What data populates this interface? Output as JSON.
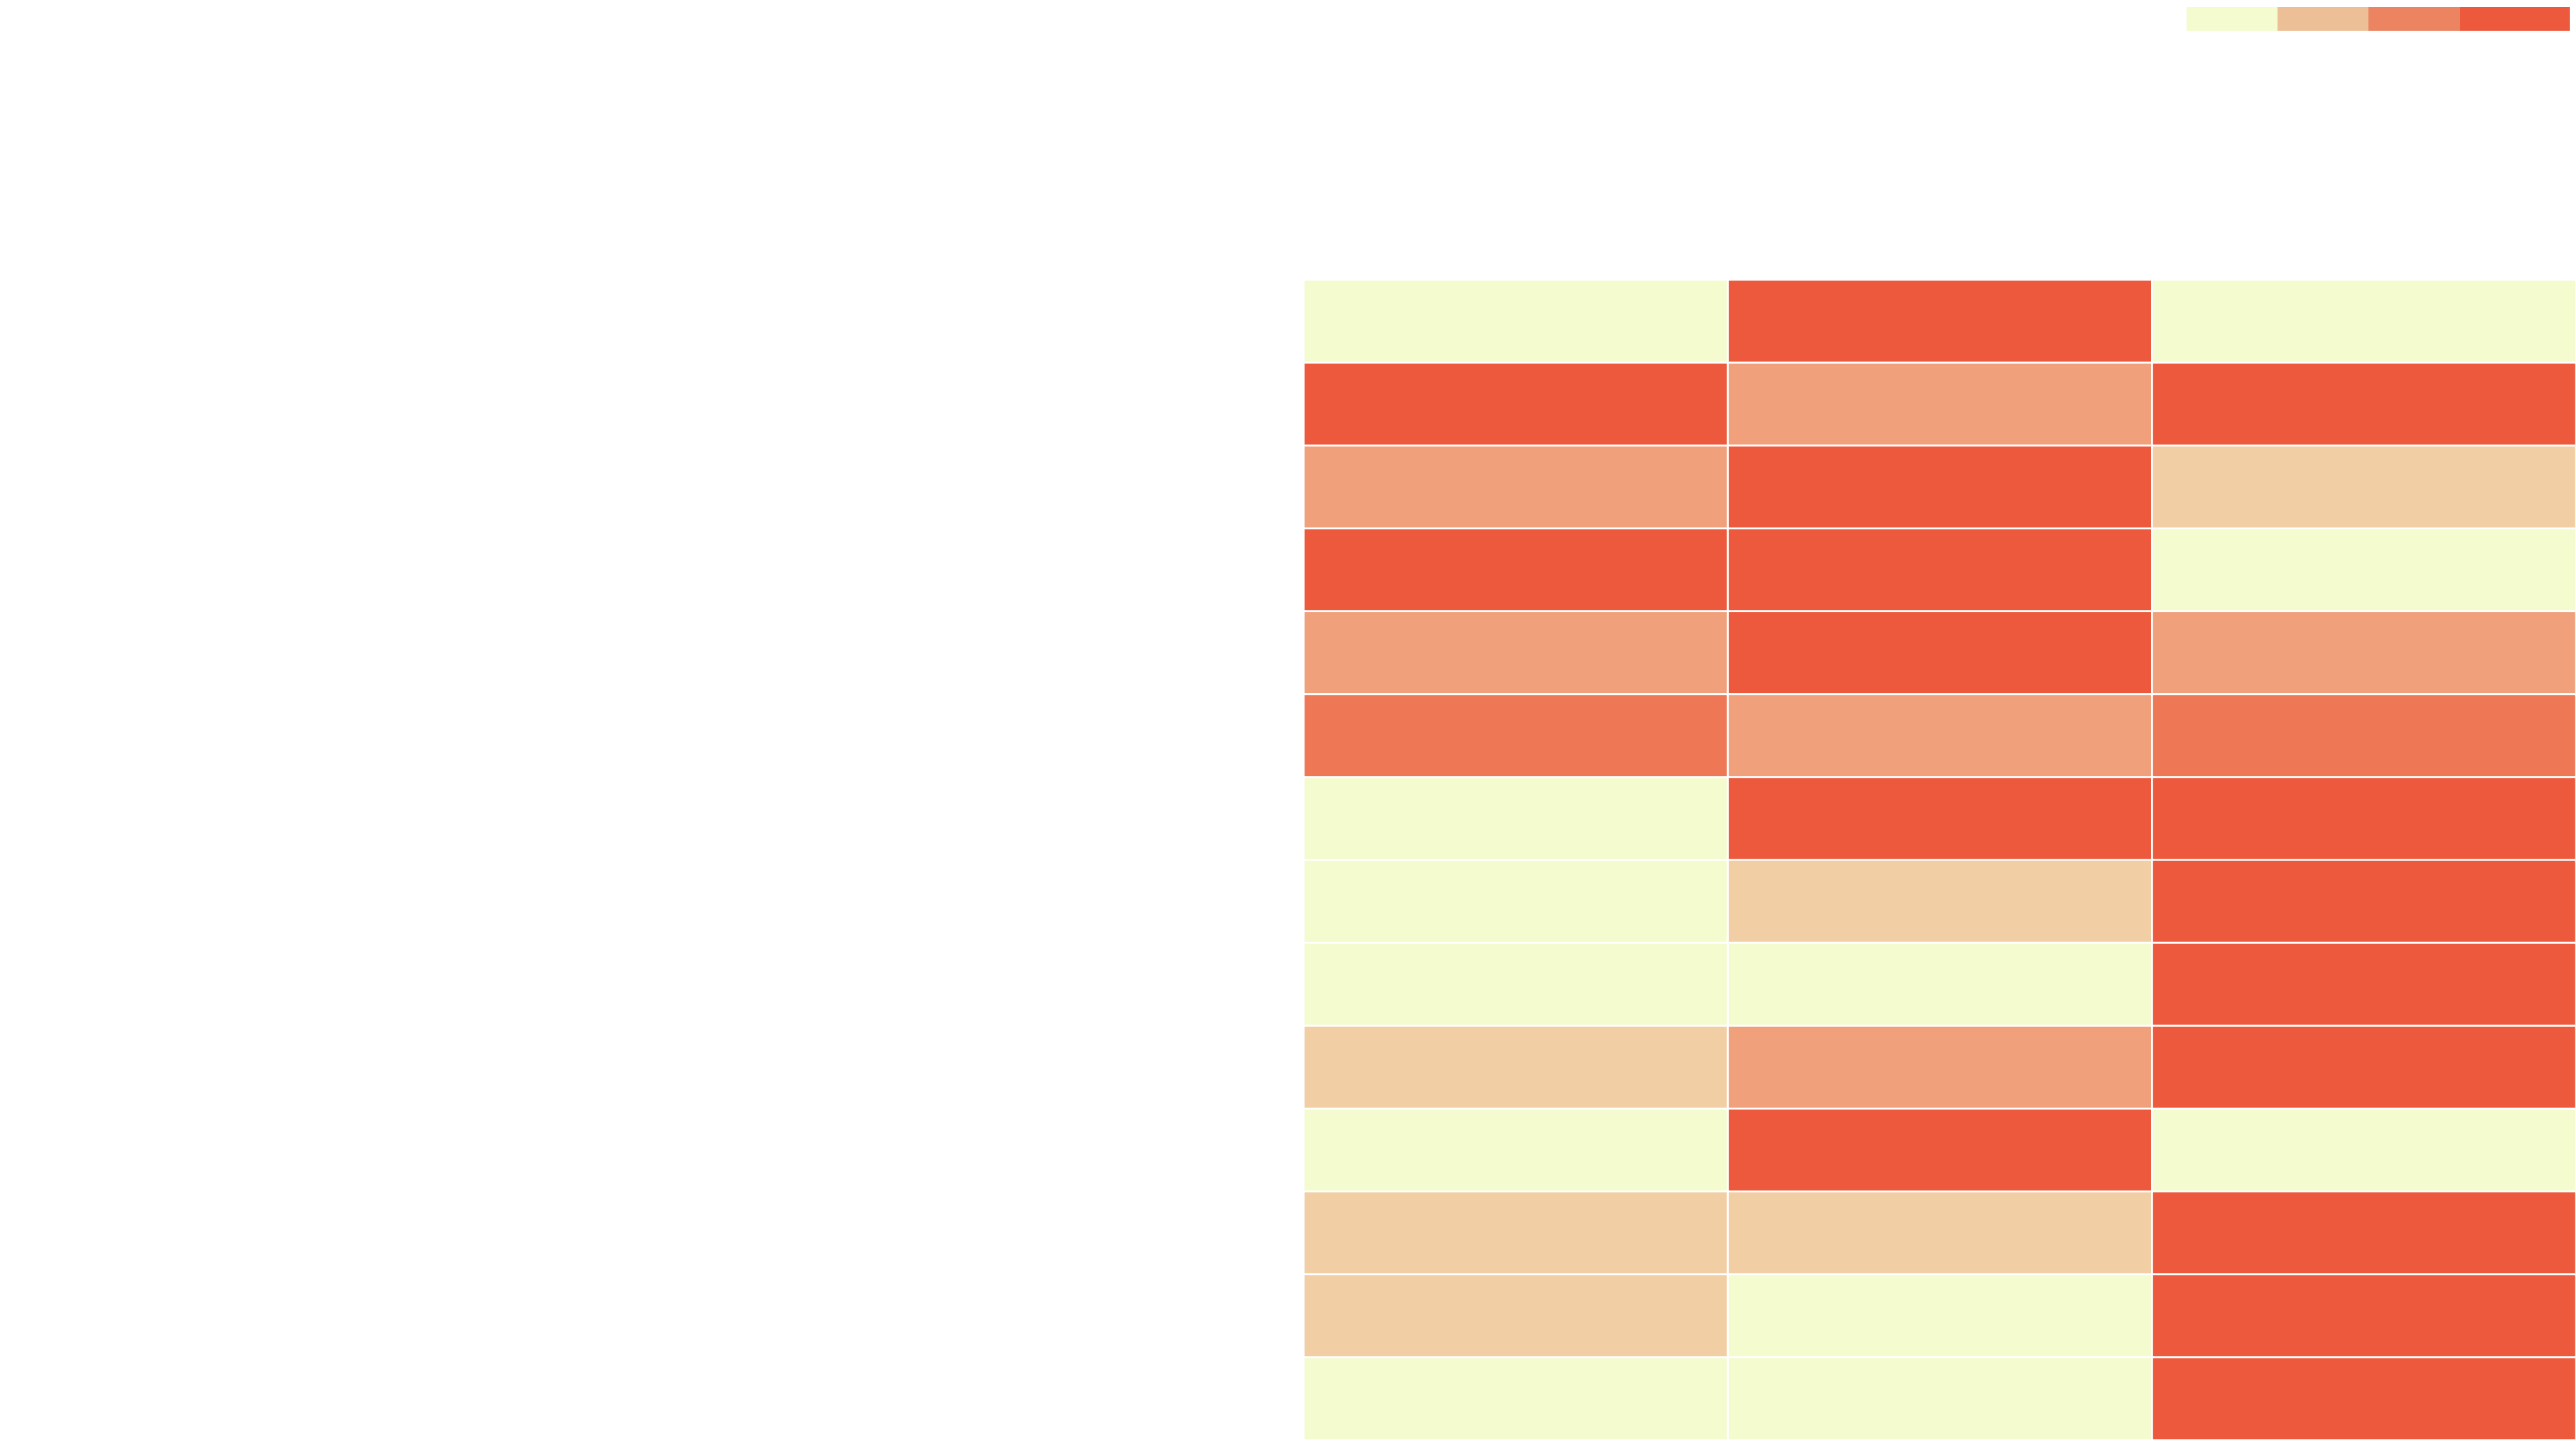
{
  "chart_data": {
    "type": "heatmap",
    "title": "",
    "xlabel": "",
    "ylabel": "",
    "columns": [
      "",
      "",
      ""
    ],
    "rows": [
      "",
      "",
      "",
      "",
      "",
      "",
      "",
      "",
      "",
      "",
      "",
      "",
      "",
      ""
    ],
    "levels": 5,
    "values": [
      [
        0,
        4,
        0
      ],
      [
        4,
        2,
        4
      ],
      [
        2,
        4,
        1
      ],
      [
        4,
        4,
        0
      ],
      [
        2,
        4,
        2
      ],
      [
        3,
        2,
        3
      ],
      [
        0,
        4,
        4
      ],
      [
        0,
        1,
        4
      ],
      [
        0,
        0,
        4
      ],
      [
        1,
        2,
        4
      ],
      [
        0,
        4,
        0
      ],
      [
        1,
        1,
        4
      ],
      [
        1,
        0,
        4
      ],
      [
        0,
        0,
        4
      ]
    ],
    "colors": [
      "#f3fbcf",
      "#f2cea4",
      "#f0a07b",
      "#ee7755",
      "#ec593c"
    ],
    "legend": {
      "placement": "top-right",
      "colors": [
        "#f3fbcf",
        "#ecbf97",
        "#ec8462",
        "#ec593c"
      ],
      "labels": [
        "",
        "",
        "",
        ""
      ]
    },
    "grid": false
  }
}
